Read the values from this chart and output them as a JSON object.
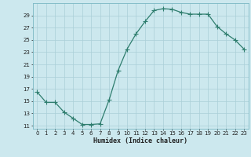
{
  "x": [
    0,
    1,
    2,
    3,
    4,
    5,
    6,
    7,
    8,
    9,
    10,
    11,
    12,
    13,
    14,
    15,
    16,
    17,
    18,
    19,
    20,
    21,
    22,
    23
  ],
  "y": [
    16.5,
    14.8,
    14.8,
    13.2,
    12.2,
    11.2,
    11.2,
    11.3,
    15.2,
    20.0,
    23.5,
    26.0,
    28.0,
    29.8,
    30.1,
    30.0,
    29.5,
    29.2,
    29.2,
    29.2,
    27.2,
    26.0,
    25.0,
    23.5
  ],
  "line_color": "#2e7d6e",
  "marker": "+",
  "marker_size": 4,
  "marker_lw": 0.8,
  "line_width": 0.9,
  "xlabel": "Humidex (Indice chaleur)",
  "bg_color": "#cce8ee",
  "grid_color": "#aacfd8",
  "xlim": [
    -0.5,
    23.5
  ],
  "ylim": [
    10.5,
    31.0
  ],
  "yticks": [
    11,
    13,
    15,
    17,
    19,
    21,
    23,
    25,
    27,
    29
  ],
  "xticks": [
    0,
    1,
    2,
    3,
    4,
    5,
    6,
    7,
    8,
    9,
    10,
    11,
    12,
    13,
    14,
    15,
    16,
    17,
    18,
    19,
    20,
    21,
    22,
    23
  ],
  "tick_fontsize": 5.0,
  "xlabel_fontsize": 6.0
}
